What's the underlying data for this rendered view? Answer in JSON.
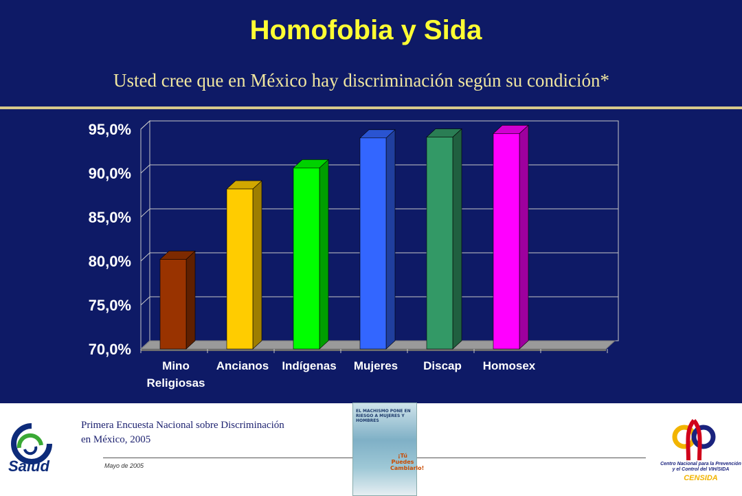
{
  "slide": {
    "title": "Homofobia y Sida",
    "subtitle": "Usted cree que en México hay discriminación según su condición*",
    "background": "#0e1a66",
    "title_color": "#ffff33"
  },
  "chart_data": {
    "type": "bar",
    "categories": [
      "Mino\nReligiosas",
      "Ancianos",
      "Indígenas",
      "Mujeres",
      "Discap",
      "Homosex"
    ],
    "values": [
      80.2,
      88.2,
      90.6,
      94.0,
      94.1,
      94.5
    ],
    "colors": [
      "#993300",
      "#ffcc00",
      "#00ff00",
      "#3366ff",
      "#339966",
      "#ff00ff"
    ],
    "ylim": [
      70,
      95
    ],
    "yticks": [
      "70,0%",
      "75,0%",
      "80,0%",
      "85,0%",
      "90,0%",
      "95,0%"
    ],
    "ytick_values": [
      70,
      75,
      80,
      85,
      90,
      95
    ],
    "grid": true,
    "style": "3d"
  },
  "footer": {
    "source_line1": "Primera Encuesta Nacional sobre Discriminación",
    "source_line2": "en México, 2005",
    "date": "Mayo de 2005",
    "salud_label": "Salud",
    "poster_text": "EL MACHISMO PONE EN RIESGO A MUJERES Y HOMBRES",
    "poster_slogan": "¡Tú Puedes Cambiarlo!",
    "censida_text": "Centro Nacional para la Prevención y el Control del VIH/SIDA",
    "censida_label": "CENSIDA"
  }
}
